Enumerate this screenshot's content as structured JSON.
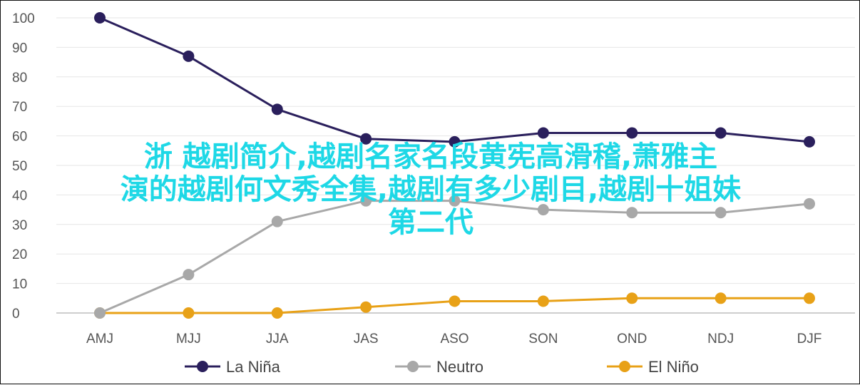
{
  "chart_data": {
    "type": "line",
    "categories": [
      "AMJ",
      "MJJ",
      "JJA",
      "JAS",
      "ASO",
      "SON",
      "OND",
      "NDJ",
      "DJF"
    ],
    "series": [
      {
        "name": "La Niña",
        "color": "#2a1f5c",
        "values": [
          100,
          87,
          69,
          59,
          58,
          61,
          61,
          61,
          58
        ]
      },
      {
        "name": "Neutro",
        "color": "#a8a8a8",
        "values": [
          0,
          13,
          31,
          38,
          38,
          35,
          34,
          34,
          37
        ]
      },
      {
        "name": "El Niño",
        "color": "#e8a117",
        "values": [
          0,
          0,
          0,
          2,
          4,
          4,
          5,
          5,
          5
        ]
      }
    ],
    "yticks": [
      0,
      10,
      20,
      30,
      40,
      50,
      60,
      70,
      80,
      90,
      100
    ],
    "ylim": [
      0,
      100
    ],
    "grid": true,
    "legend": "bottom"
  },
  "overlay_text": {
    "line1": "浙  越剧简介,越剧名家名段黄宪高滑稽,萧雅主",
    "line2": "演的越剧何文秀全集,越剧有多少剧目,越剧十姐妹",
    "line3": "第二代"
  }
}
